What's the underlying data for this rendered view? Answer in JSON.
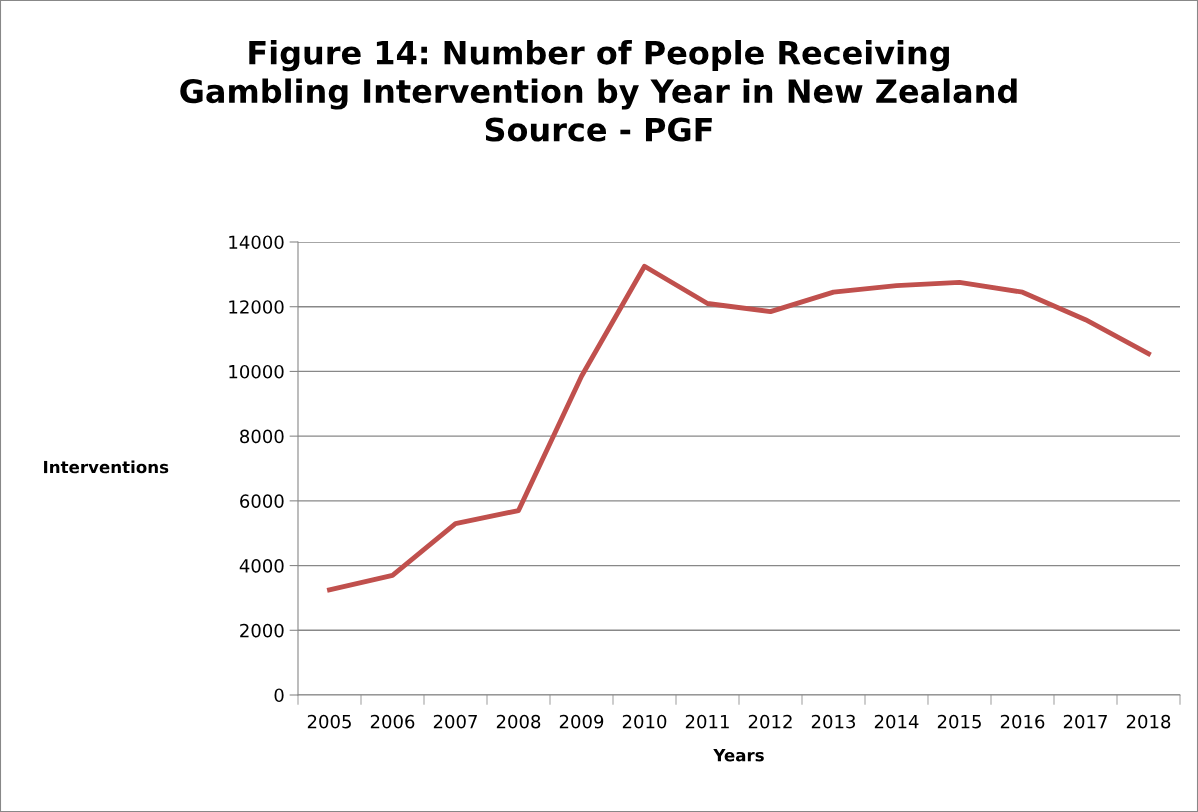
{
  "chart_data": {
    "type": "line",
    "title": "Figure 14: Number of People Receiving\nGambling Intervention by Year in New Zealand\nSource - PGF",
    "xlabel": "Years",
    "ylabel": "Interventions",
    "categories": [
      "2005",
      "2006",
      "2007",
      "2008",
      "2009",
      "2010",
      "2011",
      "2012",
      "2013",
      "2014",
      "2015",
      "2016",
      "2017",
      "2018"
    ],
    "series": [
      {
        "color": "#c0504d",
        "values": [
          3250,
          3700,
          5300,
          5700,
          9850,
          13250,
          12100,
          11850,
          12450,
          12650,
          12750,
          12450,
          11600,
          10550
        ]
      }
    ],
    "ylim": [
      0,
      14000
    ],
    "yticks": [
      0,
      2000,
      4000,
      6000,
      8000,
      10000,
      12000,
      14000
    ],
    "grid": "y",
    "marker": "none",
    "line_style": "solid"
  }
}
